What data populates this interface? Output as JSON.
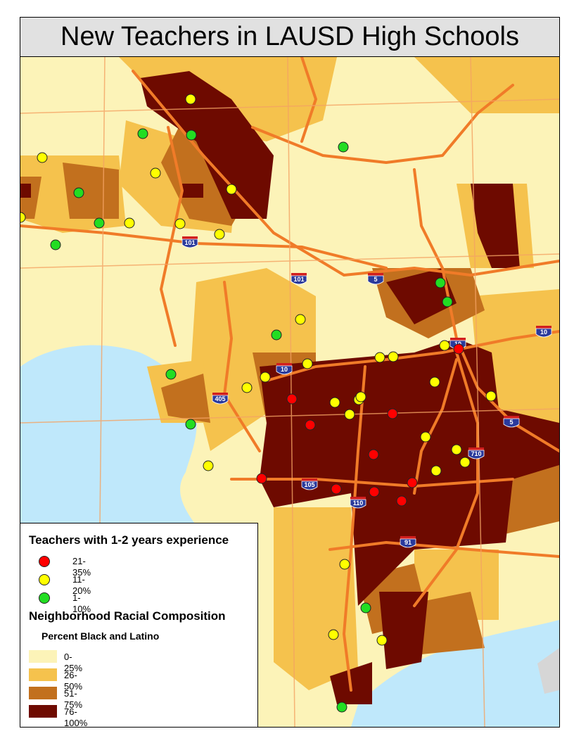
{
  "title": "New Teachers in LAUSD High Schools",
  "legend": {
    "teachers_heading": "Teachers with 1-2 years experience",
    "teacher_classes": [
      {
        "label": "21-35%",
        "color": "#ff0000"
      },
      {
        "label": "11-20%",
        "color": "#ffff00"
      },
      {
        "label": "1-10%",
        "color": "#22dd22"
      }
    ],
    "neighborhood_heading": "Neighborhood Racial Composition",
    "neighborhood_subheading": "Percent Black and Latino",
    "neighborhood_classes": [
      {
        "label": "0-25%",
        "color": "#fcf3b8"
      },
      {
        "label": "26-50%",
        "color": "#f5c24d"
      },
      {
        "label": "51-75%",
        "color": "#c2701e"
      },
      {
        "label": "76-100%",
        "color": "#6e0a00"
      }
    ]
  },
  "highway_shields": [
    "101",
    "101",
    "5",
    "10",
    "10",
    "10",
    "405",
    "5",
    "710",
    "105",
    "110",
    "91"
  ],
  "colors": {
    "water": "#bfe8fb",
    "highway": "#f07b28",
    "shield_blue": "#2a3a9c",
    "shield_red": "#d11e1e",
    "frame_title_bg": "#e1e1e1"
  }
}
